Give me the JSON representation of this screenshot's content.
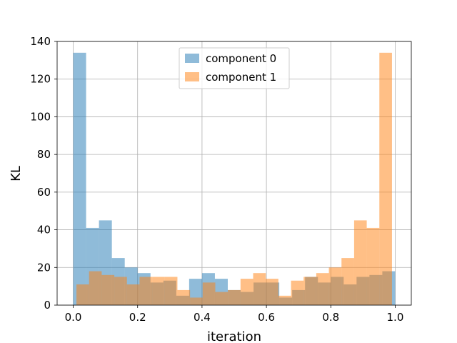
{
  "chart_data": {
    "type": "bar",
    "title": "",
    "xlabel": "iteration",
    "ylabel": "KL",
    "xlim": [
      -0.05,
      1.05
    ],
    "ylim": [
      0,
      140
    ],
    "xticks": [
      0.0,
      0.2,
      0.4,
      0.6,
      0.8,
      1.0
    ],
    "xtick_labels": [
      "0.0",
      "0.2",
      "0.4",
      "0.6",
      "0.8",
      "1.0"
    ],
    "yticks": [
      0,
      20,
      40,
      60,
      80,
      100,
      120,
      140
    ],
    "ytick_labels": [
      "0",
      "20",
      "40",
      "60",
      "80",
      "100",
      "120",
      "140"
    ],
    "grid": true,
    "legend": "top-center",
    "series": [
      {
        "name": "component 0",
        "color": "#1f77b4",
        "opacity": 0.5,
        "range": [
          0.0,
          1.0
        ],
        "values": [
          134,
          41,
          45,
          25,
          20,
          17,
          12,
          13,
          5,
          14,
          17,
          14,
          8,
          7,
          12,
          12,
          4,
          8,
          15,
          12,
          15,
          11,
          15,
          16,
          18
        ]
      },
      {
        "name": "component 1",
        "color": "#ff7f0e",
        "opacity": 0.5,
        "range": [
          0.01,
          0.99
        ],
        "values": [
          11,
          18,
          16,
          15,
          11,
          15,
          15,
          15,
          8,
          4,
          12,
          7,
          8,
          14,
          17,
          14,
          5,
          13,
          15,
          17,
          20,
          25,
          45,
          41,
          134
        ]
      }
    ]
  }
}
